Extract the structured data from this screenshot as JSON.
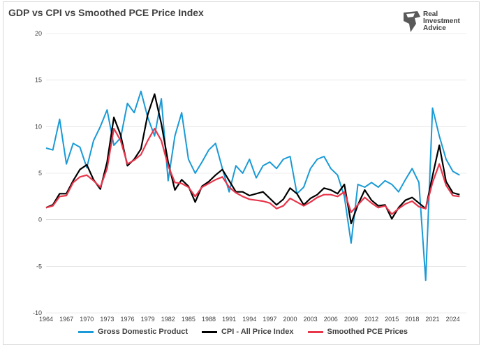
{
  "header": {
    "title": "GDP vs CPI vs Smoothed PCE Price Index"
  },
  "logo": {
    "line1": "Real",
    "line2": "Investment",
    "line3": "Advice",
    "icon": "eagle-head-icon"
  },
  "colors": {
    "gdp": "#1a9ad6",
    "cpi": "#000000",
    "pce": "#e8364b",
    "grid": "#d9d9d9",
    "axis": "#404040"
  },
  "chart_data": {
    "type": "line",
    "ylim": [
      -10,
      20
    ],
    "xlim": [
      1964,
      2026
    ],
    "y_ticks": [
      "20",
      "15",
      "10",
      "5",
      "0",
      "-5",
      "-10"
    ],
    "x_ticks": [
      "1964",
      "1967",
      "1970",
      "1973",
      "1976",
      "1979",
      "1982",
      "1985",
      "1988",
      "1991",
      "1994",
      "1997",
      "2000",
      "2003",
      "2006",
      "2009",
      "2012",
      "2015",
      "2018",
      "2021",
      "2024"
    ],
    "grid": "horizontal",
    "legend_position": "bottom",
    "series": [
      {
        "name": "Gross Domestic Product",
        "color_key": "gdp",
        "points": [
          [
            1964,
            7.7
          ],
          [
            1965,
            7.5
          ],
          [
            1966,
            10.8
          ],
          [
            1967,
            6.0
          ],
          [
            1968,
            8.2
          ],
          [
            1969,
            7.8
          ],
          [
            1970,
            5.6
          ],
          [
            1971,
            8.5
          ],
          [
            1972,
            10.0
          ],
          [
            1973,
            11.8
          ],
          [
            1974,
            8.0
          ],
          [
            1975,
            8.8
          ],
          [
            1976,
            12.5
          ],
          [
            1977,
            11.5
          ],
          [
            1978,
            13.8
          ],
          [
            1979,
            11.0
          ],
          [
            1980,
            9.0
          ],
          [
            1981,
            13.0
          ],
          [
            1982,
            4.2
          ],
          [
            1983,
            9.0
          ],
          [
            1984,
            11.5
          ],
          [
            1985,
            6.5
          ],
          [
            1986,
            5.0
          ],
          [
            1987,
            6.2
          ],
          [
            1988,
            7.5
          ],
          [
            1989,
            8.2
          ],
          [
            1990,
            5.5
          ],
          [
            1991,
            3.0
          ],
          [
            1992,
            5.8
          ],
          [
            1993,
            5.0
          ],
          [
            1994,
            6.5
          ],
          [
            1995,
            4.5
          ],
          [
            1996,
            5.8
          ],
          [
            1997,
            6.2
          ],
          [
            1998,
            5.5
          ],
          [
            1999,
            6.5
          ],
          [
            2000,
            6.8
          ],
          [
            2001,
            2.8
          ],
          [
            2002,
            3.5
          ],
          [
            2003,
            5.5
          ],
          [
            2004,
            6.5
          ],
          [
            2005,
            6.8
          ],
          [
            2006,
            5.5
          ],
          [
            2007,
            4.8
          ],
          [
            2008,
            2.5
          ],
          [
            2009,
            -2.5
          ],
          [
            2010,
            3.8
          ],
          [
            2011,
            3.5
          ],
          [
            2012,
            4.0
          ],
          [
            2013,
            3.5
          ],
          [
            2014,
            4.2
          ],
          [
            2015,
            3.8
          ],
          [
            2016,
            3.0
          ],
          [
            2017,
            4.3
          ],
          [
            2018,
            5.5
          ],
          [
            2019,
            4.0
          ],
          [
            2020,
            -6.5
          ],
          [
            2021,
            12.0
          ],
          [
            2022,
            9.0
          ],
          [
            2023,
            6.5
          ],
          [
            2024,
            5.2
          ],
          [
            2025,
            4.8
          ]
        ]
      },
      {
        "name": "CPI - All Price Index",
        "color_key": "cpi",
        "points": [
          [
            1964,
            1.3
          ],
          [
            1965,
            1.6
          ],
          [
            1966,
            2.8
          ],
          [
            1967,
            2.8
          ],
          [
            1968,
            4.2
          ],
          [
            1969,
            5.4
          ],
          [
            1970,
            5.9
          ],
          [
            1971,
            4.3
          ],
          [
            1972,
            3.3
          ],
          [
            1973,
            6.2
          ],
          [
            1974,
            11.0
          ],
          [
            1975,
            9.1
          ],
          [
            1976,
            5.8
          ],
          [
            1977,
            6.5
          ],
          [
            1978,
            7.6
          ],
          [
            1979,
            11.3
          ],
          [
            1980,
            13.5
          ],
          [
            1981,
            10.3
          ],
          [
            1982,
            6.2
          ],
          [
            1983,
            3.2
          ],
          [
            1984,
            4.3
          ],
          [
            1985,
            3.6
          ],
          [
            1986,
            1.9
          ],
          [
            1987,
            3.6
          ],
          [
            1988,
            4.1
          ],
          [
            1989,
            4.8
          ],
          [
            1990,
            5.4
          ],
          [
            1991,
            4.2
          ],
          [
            1992,
            3.0
          ],
          [
            1993,
            3.0
          ],
          [
            1994,
            2.6
          ],
          [
            1995,
            2.8
          ],
          [
            1996,
            3.0
          ],
          [
            1997,
            2.3
          ],
          [
            1998,
            1.6
          ],
          [
            1999,
            2.2
          ],
          [
            2000,
            3.4
          ],
          [
            2001,
            2.8
          ],
          [
            2002,
            1.6
          ],
          [
            2003,
            2.3
          ],
          [
            2004,
            2.7
          ],
          [
            2005,
            3.4
          ],
          [
            2006,
            3.2
          ],
          [
            2007,
            2.8
          ],
          [
            2008,
            3.8
          ],
          [
            2009,
            -0.4
          ],
          [
            2010,
            1.6
          ],
          [
            2011,
            3.2
          ],
          [
            2012,
            2.1
          ],
          [
            2013,
            1.5
          ],
          [
            2014,
            1.6
          ],
          [
            2015,
            0.1
          ],
          [
            2016,
            1.3
          ],
          [
            2017,
            2.1
          ],
          [
            2018,
            2.4
          ],
          [
            2019,
            1.8
          ],
          [
            2020,
            1.2
          ],
          [
            2021,
            4.7
          ],
          [
            2022,
            8.0
          ],
          [
            2023,
            4.1
          ],
          [
            2024,
            2.9
          ],
          [
            2025,
            2.7
          ]
        ]
      },
      {
        "name": "Smoothed PCE Prices",
        "color_key": "pce",
        "points": [
          [
            1964,
            1.3
          ],
          [
            1965,
            1.5
          ],
          [
            1966,
            2.5
          ],
          [
            1967,
            2.6
          ],
          [
            1968,
            4.0
          ],
          [
            1969,
            4.6
          ],
          [
            1970,
            4.8
          ],
          [
            1971,
            4.2
          ],
          [
            1972,
            3.5
          ],
          [
            1973,
            5.5
          ],
          [
            1974,
            9.8
          ],
          [
            1975,
            8.5
          ],
          [
            1976,
            6.0
          ],
          [
            1977,
            6.4
          ],
          [
            1978,
            7.0
          ],
          [
            1979,
            8.5
          ],
          [
            1980,
            9.8
          ],
          [
            1981,
            8.5
          ],
          [
            1982,
            5.8
          ],
          [
            1983,
            4.0
          ],
          [
            1984,
            3.9
          ],
          [
            1985,
            3.5
          ],
          [
            1986,
            2.5
          ],
          [
            1987,
            3.5
          ],
          [
            1988,
            3.9
          ],
          [
            1989,
            4.3
          ],
          [
            1990,
            4.6
          ],
          [
            1991,
            3.5
          ],
          [
            1992,
            2.9
          ],
          [
            1993,
            2.5
          ],
          [
            1994,
            2.2
          ],
          [
            1995,
            2.1
          ],
          [
            1996,
            2.0
          ],
          [
            1997,
            1.8
          ],
          [
            1998,
            1.2
          ],
          [
            1999,
            1.5
          ],
          [
            2000,
            2.3
          ],
          [
            2001,
            1.9
          ],
          [
            2002,
            1.5
          ],
          [
            2003,
            1.9
          ],
          [
            2004,
            2.4
          ],
          [
            2005,
            2.7
          ],
          [
            2006,
            2.7
          ],
          [
            2007,
            2.5
          ],
          [
            2008,
            3.0
          ],
          [
            2009,
            0.8
          ],
          [
            2010,
            1.6
          ],
          [
            2011,
            2.4
          ],
          [
            2012,
            1.8
          ],
          [
            2013,
            1.3
          ],
          [
            2014,
            1.5
          ],
          [
            2015,
            0.6
          ],
          [
            2016,
            1.2
          ],
          [
            2017,
            1.7
          ],
          [
            2018,
            2.0
          ],
          [
            2019,
            1.4
          ],
          [
            2020,
            1.2
          ],
          [
            2021,
            4.0
          ],
          [
            2022,
            6.0
          ],
          [
            2023,
            3.7
          ],
          [
            2024,
            2.6
          ],
          [
            2025,
            2.5
          ]
        ]
      }
    ]
  }
}
